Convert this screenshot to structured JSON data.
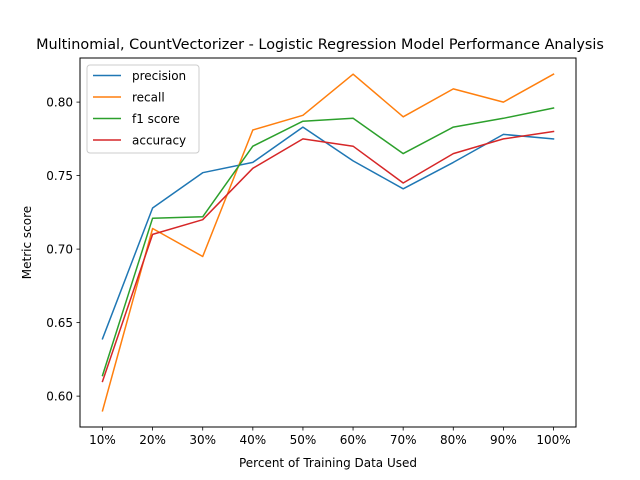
{
  "chart_data": {
    "type": "line",
    "title": "Multinomial, CountVectorizer - Logistic Regression Model Performance Analysis",
    "xlabel": "Percent of Training Data Used",
    "ylabel": "Metric score",
    "categories": [
      "10%",
      "20%",
      "30%",
      "40%",
      "50%",
      "60%",
      "70%",
      "80%",
      "90%",
      "100%"
    ],
    "ylim": [
      0.579,
      0.83
    ],
    "yticks": [
      "0.60",
      "0.65",
      "0.70",
      "0.75",
      "0.80"
    ],
    "ytick_values": [
      0.6,
      0.65,
      0.7,
      0.75,
      0.8
    ],
    "grid": false,
    "legend_position": "top-left",
    "series": [
      {
        "name": "precision",
        "color": "#1f77b4",
        "values": [
          0.639,
          0.728,
          0.752,
          0.759,
          0.783,
          0.76,
          0.741,
          0.759,
          0.778,
          0.775
        ]
      },
      {
        "name": "recall",
        "color": "#ff7f0e",
        "values": [
          0.59,
          0.714,
          0.695,
          0.781,
          0.791,
          0.819,
          0.79,
          0.809,
          0.8,
          0.819
        ]
      },
      {
        "name": "f1 score",
        "color": "#2ca02c",
        "values": [
          0.614,
          0.721,
          0.722,
          0.77,
          0.787,
          0.789,
          0.765,
          0.783,
          0.789,
          0.796
        ]
      },
      {
        "name": "accuracy",
        "color": "#d62728",
        "values": [
          0.61,
          0.71,
          0.72,
          0.755,
          0.775,
          0.77,
          0.745,
          0.765,
          0.775,
          0.78
        ]
      }
    ]
  }
}
